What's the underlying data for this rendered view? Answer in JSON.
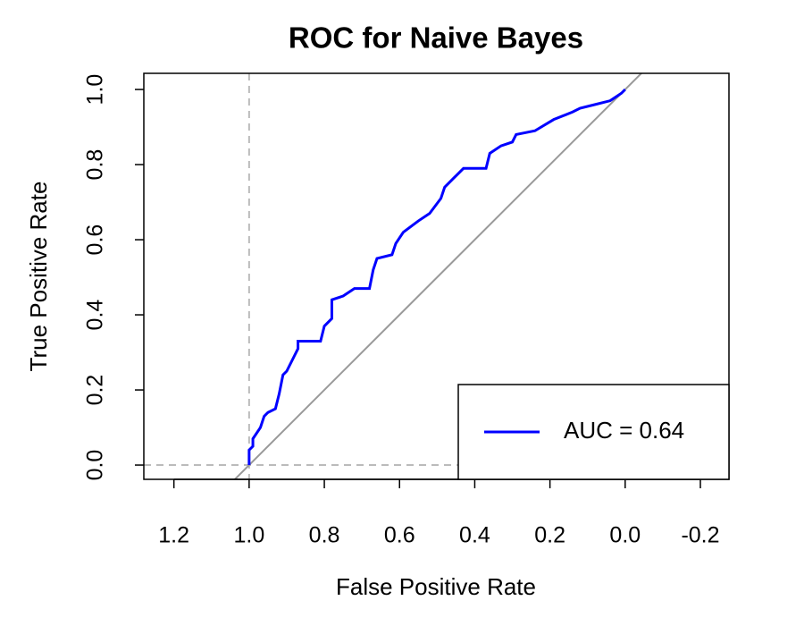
{
  "chart_data": {
    "type": "line",
    "title": "ROC for Naive Bayes",
    "x_label": "False Positive Rate",
    "y_label": "True Positive Rate",
    "xlim": [
      1.28,
      -0.276
    ],
    "ylim": [
      -0.038,
      1.043
    ],
    "xticks": [
      1.2,
      {
        "value": 1.0,
        "label": "1.0"
      },
      0.8,
      0.6,
      0.4,
      0.2,
      {
        "value": 0.0,
        "label": "0.0"
      },
      -0.2
    ],
    "yticks": [
      {
        "value": 0.0,
        "label": "0.0"
      },
      0.2,
      0.4,
      0.6,
      0.8,
      {
        "value": 1.0,
        "label": "1.0"
      }
    ],
    "legend": "bottom-right",
    "series": [
      {
        "name": "AUC = 0.64",
        "color": "#0000ff",
        "x": [
          1.0,
          1.0,
          0.99,
          0.99,
          0.97,
          0.96,
          0.95,
          0.93,
          0.92,
          0.91,
          0.9,
          0.88,
          0.87,
          0.87,
          0.81,
          0.8,
          0.78,
          0.78,
          0.75,
          0.72,
          0.68,
          0.67,
          0.66,
          0.62,
          0.61,
          0.59,
          0.55,
          0.52,
          0.49,
          0.48,
          0.45,
          0.43,
          0.37,
          0.36,
          0.33,
          0.3,
          0.29,
          0.24,
          0.19,
          0.14,
          0.12,
          0.08,
          0.04,
          0.01,
          0.0
        ],
        "values": [
          0.0,
          0.04,
          0.05,
          0.07,
          0.1,
          0.13,
          0.14,
          0.15,
          0.19,
          0.24,
          0.25,
          0.29,
          0.31,
          0.33,
          0.33,
          0.37,
          0.39,
          0.44,
          0.45,
          0.47,
          0.47,
          0.52,
          0.55,
          0.56,
          0.59,
          0.62,
          0.65,
          0.67,
          0.71,
          0.74,
          0.77,
          0.79,
          0.79,
          0.83,
          0.85,
          0.86,
          0.88,
          0.89,
          0.92,
          0.94,
          0.95,
          0.96,
          0.97,
          0.99,
          1.0
        ]
      }
    ]
  }
}
